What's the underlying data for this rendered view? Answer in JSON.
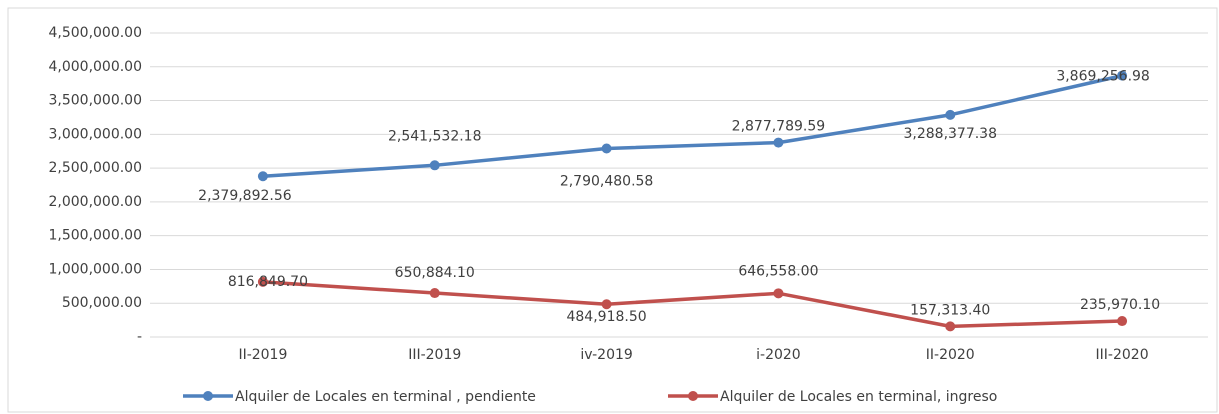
{
  "chart_data": {
    "type": "line",
    "categories": [
      "II-2019",
      "III-2019",
      "iv-2019",
      "i-2020",
      "II-2020",
      "III-2020"
    ],
    "series": [
      {
        "name": "Alquiler de Locales en terminal , pendiente",
        "color": "#4f81bd",
        "values": [
          2379892.56,
          2541532.18,
          2790480.58,
          2877789.59,
          3288377.38,
          3869256.98
        ],
        "value_labels": [
          "2,379,892.56",
          "2,541,532.18",
          "2,790,480.58",
          "2,877,789.59",
          "3,288,377.38",
          "3,869,256.98"
        ]
      },
      {
        "name": "Alquiler de Locales en terminal, ingreso",
        "color": "#c0504d",
        "values": [
          816849.7,
          650884.1,
          484918.5,
          646558.0,
          157313.4,
          235970.1
        ],
        "value_labels": [
          "816,849.70",
          "650,884.10",
          "484,918.50",
          "646,558.00",
          "157,313.40",
          "235,970.10"
        ]
      }
    ],
    "ylim": [
      0,
      4500000
    ],
    "yticks": [
      {
        "value": 0,
        "label": "-"
      },
      {
        "value": 500000,
        "label": "500,000.00"
      },
      {
        "value": 1000000,
        "label": "1,000,000.00"
      },
      {
        "value": 1500000,
        "label": "1,500,000.00"
      },
      {
        "value": 2000000,
        "label": "2,000,000.00"
      },
      {
        "value": 2500000,
        "label": "2,500,000.00"
      },
      {
        "value": 3000000,
        "label": "3,000,000.00"
      },
      {
        "value": 3500000,
        "label": "3,500,000.00"
      },
      {
        "value": 4000000,
        "label": "4,000,000.00"
      },
      {
        "value": 4500000,
        "label": "4,500,000.00"
      }
    ],
    "grid": true,
    "legend": "bottom"
  }
}
